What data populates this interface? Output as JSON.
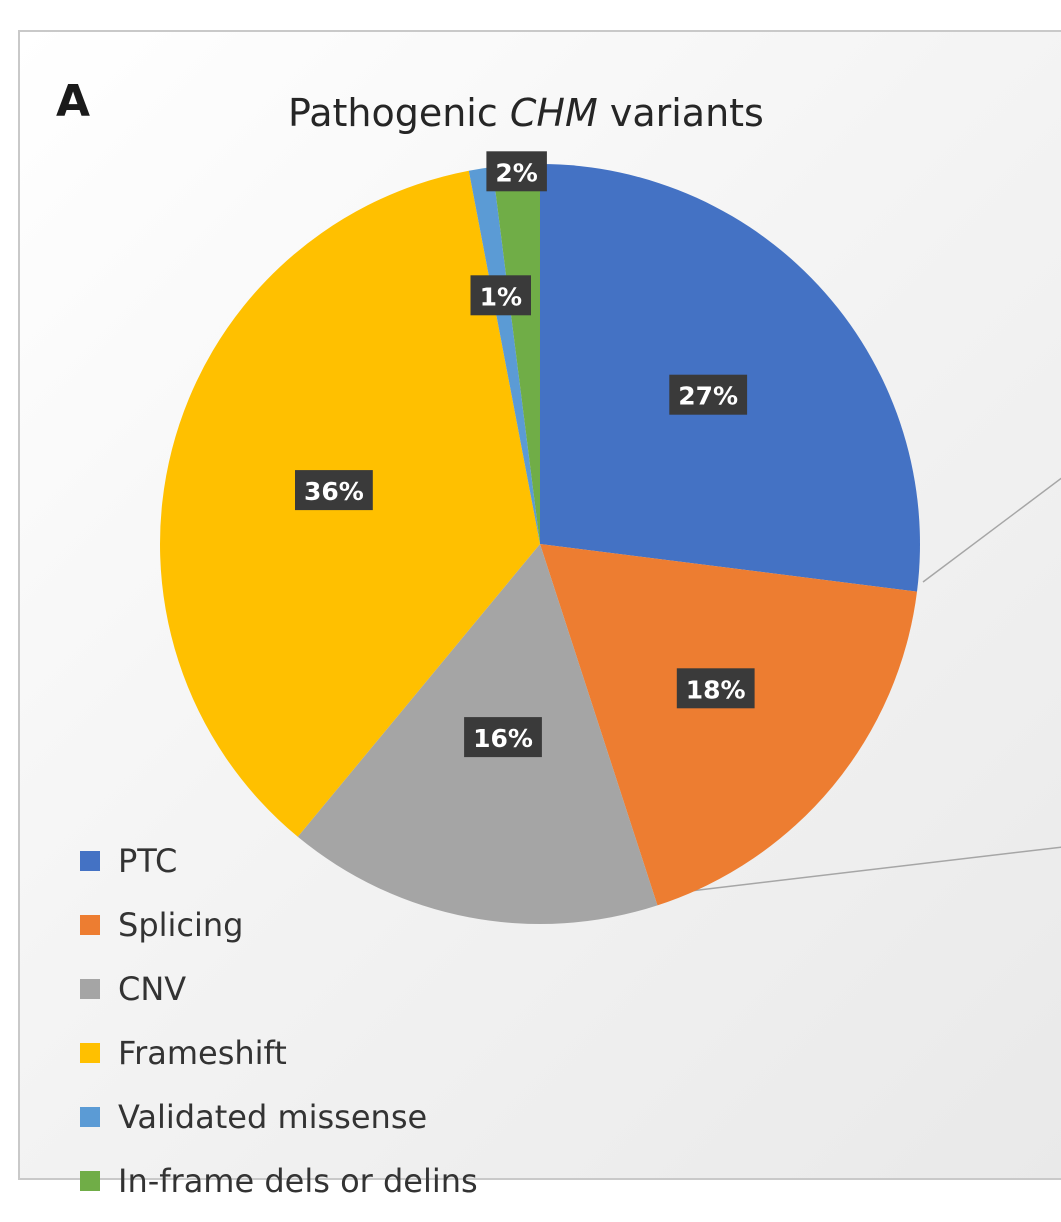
{
  "panel_letter": "A",
  "title": {
    "prefix": "Pathogenic ",
    "gene": "CHM",
    "suffix": " variants"
  },
  "chart_data": {
    "type": "pie",
    "title": "Pathogenic CHM variants",
    "legend_position": "bottom-left",
    "start_angle_deg": 0,
    "direction": "clockwise",
    "slices": [
      {
        "label": "PTC",
        "value": 27,
        "display": "27%",
        "color": "#4472c4"
      },
      {
        "label": "Splicing",
        "value": 18,
        "display": "18%",
        "color": "#ed7d31"
      },
      {
        "label": "CNV",
        "value": 16,
        "display": "16%",
        "color": "#a5a5a5"
      },
      {
        "label": "Frameshift",
        "value": 36,
        "display": "36%",
        "color": "#ffc000"
      },
      {
        "label": "Validated missense",
        "value": 1,
        "display": "1%",
        "color": "#5b9bd5"
      },
      {
        "label": "In-frame dels or delins",
        "value": 2,
        "display": "2%",
        "color": "#70ad47"
      }
    ]
  }
}
